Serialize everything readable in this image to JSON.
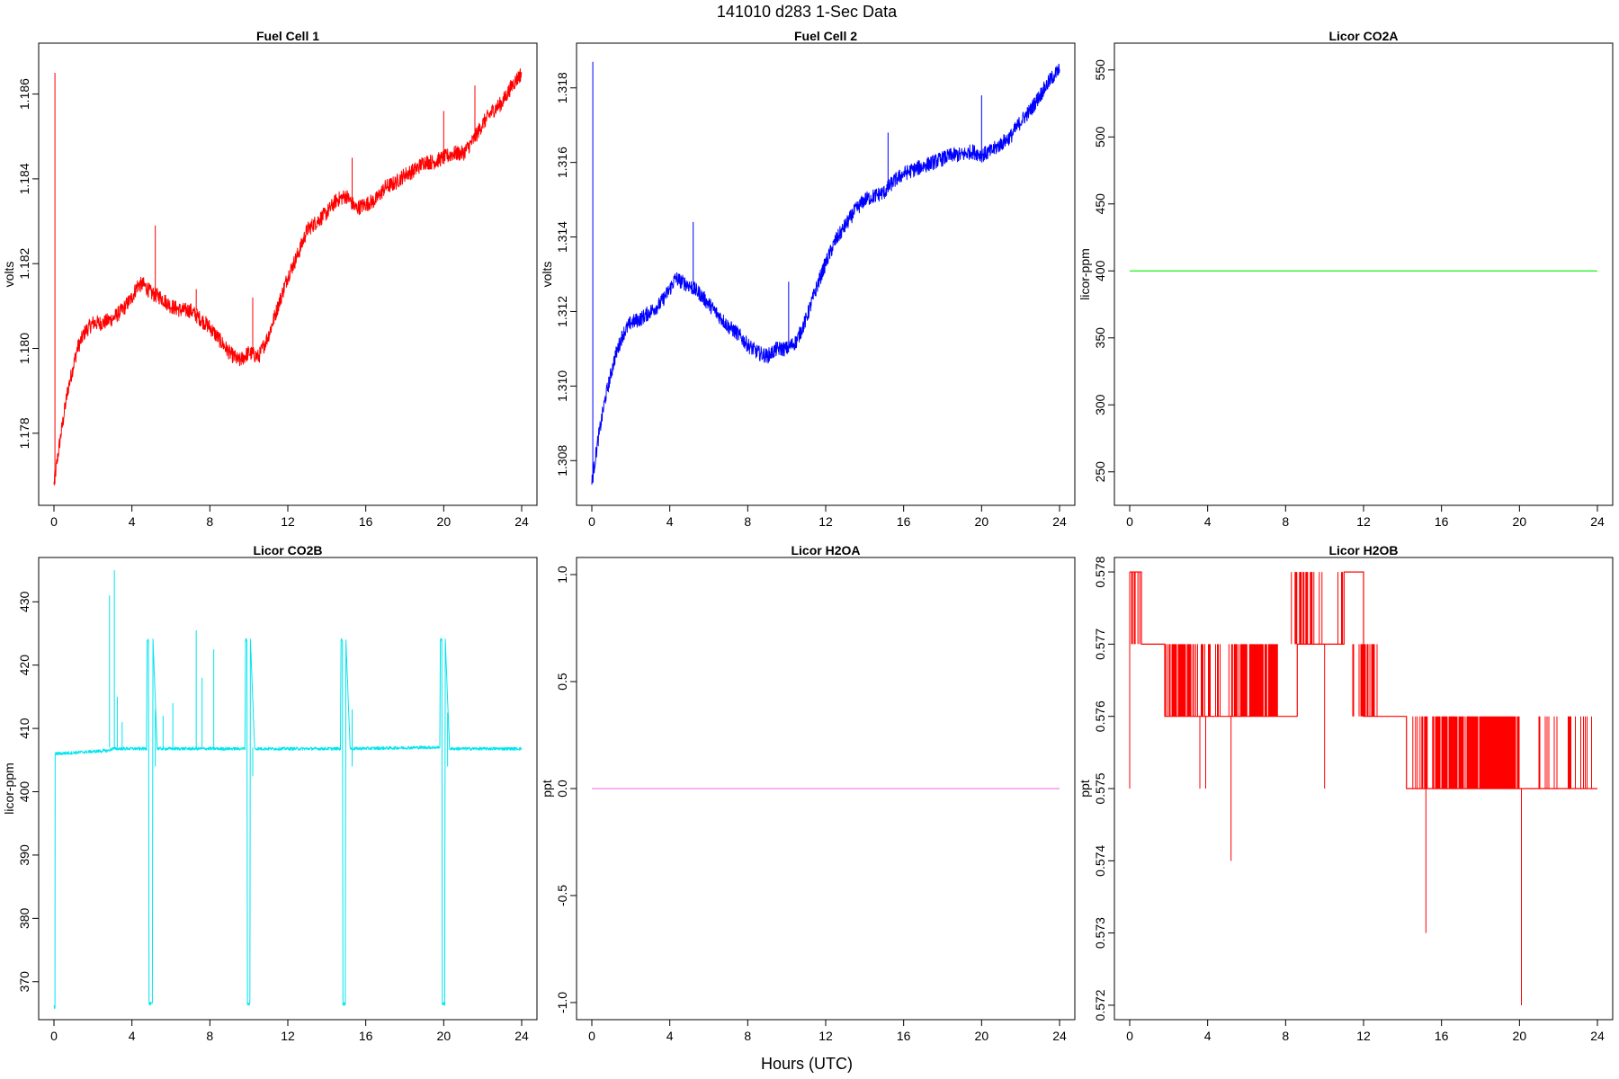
{
  "figure": {
    "title": "141010   d283   1-Sec Data",
    "xlabel": "Hours (UTC)"
  },
  "chart_data": [
    {
      "type": "line",
      "title": "Fuel Cell 1",
      "ylabel": "volts",
      "color": "#ff0000",
      "xlim": [
        0,
        24
      ],
      "ylim": [
        1.1763,
        1.1872
      ],
      "xticks": [
        0,
        4,
        8,
        12,
        16,
        20,
        24
      ],
      "xtick_labels": [
        "0",
        "4",
        "8",
        "12",
        "16",
        "20",
        "24"
      ],
      "yticks": [
        1.178,
        1.18,
        1.182,
        1.184,
        1.186
      ],
      "ytick_labels": [
        "1.178",
        "1.180",
        "1.182",
        "1.184",
        "1.186"
      ],
      "noise": 0.00018,
      "series": [
        {
          "x": [
            0,
            0.3,
            0.7,
            1.2,
            1.6,
            2,
            2.5,
            3,
            3.5,
            4,
            4.3,
            4.6,
            5,
            5.5,
            6,
            6.5,
            7,
            7.5,
            8,
            8.5,
            9,
            9.5,
            10,
            10.5,
            11,
            11.5,
            12,
            12.5,
            13,
            13.5,
            14,
            14.5,
            15,
            15.5,
            16,
            16.5,
            17,
            17.5,
            18,
            18.5,
            19,
            19.5,
            20,
            20.5,
            21,
            21.5,
            22,
            22.5,
            23,
            23.5,
            24
          ],
          "y": [
            1.1768,
            1.1778,
            1.179,
            1.18,
            1.1804,
            1.1806,
            1.1806,
            1.1807,
            1.1809,
            1.1812,
            1.1815,
            1.1815,
            1.1813,
            1.1812,
            1.181,
            1.1809,
            1.1809,
            1.1807,
            1.1805,
            1.1802,
            1.1799,
            1.1797,
            1.1799,
            1.1798,
            1.1803,
            1.181,
            1.1817,
            1.1822,
            1.1828,
            1.183,
            1.1832,
            1.1835,
            1.1836,
            1.1833,
            1.1834,
            1.1835,
            1.1838,
            1.1839,
            1.1841,
            1.1842,
            1.1844,
            1.1844,
            1.1845,
            1.1846,
            1.1846,
            1.1849,
            1.1853,
            1.1856,
            1.1858,
            1.1862,
            1.1865
          ]
        }
      ],
      "spikes": [
        {
          "x": 0.05,
          "y0": 1.1768,
          "y1": 1.1865
        },
        {
          "x": 5.2,
          "y0": 1.1812,
          "y1": 1.1829
        },
        {
          "x": 7.3,
          "y0": 1.1809,
          "y1": 1.1814
        },
        {
          "x": 10.2,
          "y0": 1.1799,
          "y1": 1.1812
        },
        {
          "x": 15.3,
          "y0": 1.1834,
          "y1": 1.1845
        },
        {
          "x": 20.0,
          "y0": 1.1845,
          "y1": 1.1856
        },
        {
          "x": 21.6,
          "y0": 1.1849,
          "y1": 1.1862
        }
      ]
    },
    {
      "type": "line",
      "title": "Fuel Cell 2",
      "ylabel": "volts",
      "color": "#0000ff",
      "xlim": [
        0,
        24
      ],
      "ylim": [
        1.3068,
        1.3192
      ],
      "xticks": [
        0,
        4,
        8,
        12,
        16,
        20,
        24
      ],
      "xtick_labels": [
        "0",
        "4",
        "8",
        "12",
        "16",
        "20",
        "24"
      ],
      "yticks": [
        1.308,
        1.31,
        1.312,
        1.314,
        1.316,
        1.318
      ],
      "ytick_labels": [
        "1.308",
        "1.310",
        "1.312",
        "1.314",
        "1.316",
        "1.318"
      ],
      "noise": 0.0002,
      "series": [
        {
          "x": [
            0,
            0.3,
            0.7,
            1.2,
            1.6,
            2,
            2.5,
            3,
            3.5,
            4,
            4.3,
            4.6,
            5,
            5.5,
            6,
            6.5,
            7,
            7.5,
            8,
            8.5,
            9,
            9.5,
            10,
            10.5,
            11,
            11.5,
            12,
            12.5,
            13,
            13.5,
            14,
            14.5,
            15,
            15.5,
            16,
            16.5,
            17,
            17.5,
            18,
            18.5,
            19,
            19.5,
            20,
            20.5,
            21,
            21.5,
            22,
            22.5,
            23,
            23.5,
            24
          ],
          "y": [
            1.3074,
            1.3085,
            1.3097,
            1.3108,
            1.3114,
            1.3117,
            1.3118,
            1.312,
            1.3122,
            1.3126,
            1.3129,
            1.3128,
            1.3127,
            1.3125,
            1.3122,
            1.3119,
            1.3116,
            1.3114,
            1.3111,
            1.3109,
            1.3108,
            1.311,
            1.311,
            1.3112,
            1.3118,
            1.3126,
            1.3133,
            1.3139,
            1.3143,
            1.3147,
            1.315,
            1.3151,
            1.3152,
            1.3155,
            1.3157,
            1.3158,
            1.3159,
            1.316,
            1.3161,
            1.3162,
            1.3162,
            1.3163,
            1.3162,
            1.3163,
            1.3165,
            1.3167,
            1.3171,
            1.3174,
            1.3178,
            1.3182,
            1.3185
          ]
        }
      ],
      "spikes": [
        {
          "x": 0.05,
          "y0": 1.3074,
          "y1": 1.3187
        },
        {
          "x": 5.2,
          "y0": 1.3127,
          "y1": 1.3144
        },
        {
          "x": 10.1,
          "y0": 1.311,
          "y1": 1.3128
        },
        {
          "x": 15.2,
          "y0": 1.3152,
          "y1": 1.3168
        },
        {
          "x": 20.0,
          "y0": 1.3162,
          "y1": 1.3178
        }
      ]
    },
    {
      "type": "line",
      "title": "Licor CO2A",
      "ylabel": "licor-ppm",
      "color": "#00ee00",
      "xlim": [
        0,
        24
      ],
      "ylim": [
        225,
        570
      ],
      "xticks": [
        0,
        4,
        8,
        12,
        16,
        20,
        24
      ],
      "xtick_labels": [
        "0",
        "4",
        "8",
        "12",
        "16",
        "20",
        "24"
      ],
      "yticks": [
        250,
        300,
        350,
        400,
        450,
        500,
        550
      ],
      "ytick_labels": [
        "250",
        "300",
        "350",
        "400",
        "450",
        "500",
        "550"
      ],
      "noise": 0,
      "series": [
        {
          "x": [
            0,
            24
          ],
          "y": [
            400,
            400
          ]
        }
      ],
      "spikes": []
    },
    {
      "type": "line",
      "title": "Licor CO2B",
      "ylabel": "licor-ppm",
      "color": "#00e5ee",
      "xlim": [
        0,
        24
      ],
      "ylim": [
        364,
        437
      ],
      "xticks": [
        0,
        4,
        8,
        12,
        16,
        20,
        24
      ],
      "xtick_labels": [
        "0",
        "4",
        "8",
        "12",
        "16",
        "20",
        "24"
      ],
      "yticks": [
        370,
        380,
        390,
        400,
        410,
        420,
        430
      ],
      "ytick_labels": [
        "370",
        "380",
        "390",
        "400",
        "410",
        "420",
        "430"
      ],
      "noise": 0.25,
      "series": [
        {
          "x": [
            0,
            0.05,
            0.06,
            0.1,
            2.8,
            3.0,
            4.5,
            4.75,
            4.78,
            4.85,
            4.88,
            5.05,
            5.08,
            5.3,
            7,
            9.5,
            9.8,
            9.83,
            9.9,
            9.93,
            10.05,
            10.08,
            10.3,
            14,
            14.7,
            14.73,
            14.8,
            14.83,
            14.95,
            14.98,
            15.2,
            19,
            19.8,
            19.83,
            19.9,
            19.93,
            20.05,
            20.08,
            20.3,
            24
          ],
          "y": [
            366,
            366,
            406,
            406,
            406.5,
            406.8,
            406.8,
            406.8,
            424,
            424,
            366.5,
            366.5,
            424,
            406.8,
            406.8,
            406.8,
            406.8,
            424,
            424,
            366.5,
            366.5,
            424,
            406.8,
            406.8,
            406.8,
            424,
            424,
            366.5,
            366.5,
            424,
            406.8,
            407,
            407,
            424,
            424,
            366.5,
            366.5,
            424,
            406.8,
            406.8
          ]
        }
      ],
      "spikes": [
        {
          "x": 2.85,
          "y0": 407,
          "y1": 431
        },
        {
          "x": 3.1,
          "y0": 407,
          "y1": 435
        },
        {
          "x": 3.25,
          "y0": 407,
          "y1": 415
        },
        {
          "x": 3.5,
          "y0": 407,
          "y1": 411
        },
        {
          "x": 5.2,
          "y0": 404,
          "y1": 413
        },
        {
          "x": 5.6,
          "y0": 407,
          "y1": 412
        },
        {
          "x": 6.1,
          "y0": 407,
          "y1": 414
        },
        {
          "x": 7.3,
          "y0": 407,
          "y1": 425.5
        },
        {
          "x": 7.6,
          "y0": 407,
          "y1": 418
        },
        {
          "x": 8.2,
          "y0": 407,
          "y1": 422.5
        },
        {
          "x": 10.2,
          "y0": 402.5,
          "y1": 407
        },
        {
          "x": 15.3,
          "y0": 404,
          "y1": 413
        },
        {
          "x": 20.2,
          "y0": 404,
          "y1": 412.5
        }
      ]
    },
    {
      "type": "line",
      "title": "Licor H2OA",
      "ylabel": "ppt",
      "color": "#ee82ee",
      "xlim": [
        0,
        24
      ],
      "ylim": [
        -1.08,
        1.08
      ],
      "xticks": [
        0,
        4,
        8,
        12,
        16,
        20,
        24
      ],
      "xtick_labels": [
        "0",
        "4",
        "8",
        "12",
        "16",
        "20",
        "24"
      ],
      "yticks": [
        -1.0,
        -0.5,
        0.0,
        0.5,
        1.0
      ],
      "ytick_labels": [
        "-1.0",
        "-0.5",
        "0.0",
        "0.5",
        "1.0"
      ],
      "noise": 0,
      "series": [
        {
          "x": [
            0,
            24
          ],
          "y": [
            0,
            0
          ]
        }
      ],
      "spikes": []
    },
    {
      "type": "line",
      "title": "Licor H2OB",
      "ylabel": "ppt",
      "color": "#ff0000",
      "xlim": [
        0,
        24
      ],
      "ylim": [
        0.5718,
        0.5782
      ],
      "xticks": [
        0,
        4,
        8,
        12,
        16,
        20,
        24
      ],
      "xtick_labels": [
        "0",
        "4",
        "8",
        "12",
        "16",
        "20",
        "24"
      ],
      "yticks": [
        0.572,
        0.573,
        0.574,
        0.575,
        0.576,
        0.577,
        0.578
      ],
      "ytick_labels": [
        "0.572",
        "0.573",
        "0.574",
        "0.575",
        "0.576",
        "0.577",
        "0.578"
      ],
      "noise": 0,
      "series": [
        {
          "x": [
            0,
            0.6,
            0.6,
            1.8,
            1.8,
            8.6,
            8.6,
            11,
            11,
            12,
            12,
            14.2,
            14.2,
            24
          ],
          "y": [
            0.578,
            0.578,
            0.577,
            0.577,
            0.576,
            0.576,
            0.577,
            0.577,
            0.578,
            0.578,
            0.576,
            0.576,
            0.575,
            0.575
          ]
        }
      ],
      "bands": [
        {
          "x0": 0.05,
          "x1": 0.55,
          "lo": 0.577,
          "hi": 0.578,
          "density": 0.55
        },
        {
          "x0": 1.8,
          "x1": 3.3,
          "lo": 0.576,
          "hi": 0.577,
          "density": 0.8
        },
        {
          "x0": 3.3,
          "x1": 5.0,
          "lo": 0.576,
          "hi": 0.577,
          "density": 0.35
        },
        {
          "x0": 5.0,
          "x1": 7.6,
          "lo": 0.576,
          "hi": 0.577,
          "density": 0.75
        },
        {
          "x0": 8.3,
          "x1": 9.9,
          "lo": 0.577,
          "hi": 0.578,
          "density": 0.55
        },
        {
          "x0": 10.5,
          "x1": 11.0,
          "lo": 0.577,
          "hi": 0.578,
          "density": 0.4
        },
        {
          "x0": 11.4,
          "x1": 12.8,
          "lo": 0.576,
          "hi": 0.577,
          "density": 0.7
        },
        {
          "x0": 14.3,
          "x1": 15.6,
          "lo": 0.575,
          "hi": 0.576,
          "density": 0.5
        },
        {
          "x0": 15.6,
          "x1": 17.4,
          "lo": 0.575,
          "hi": 0.576,
          "density": 0.8
        },
        {
          "x0": 17.4,
          "x1": 20.0,
          "lo": 0.575,
          "hi": 0.576,
          "density": 0.97
        },
        {
          "x0": 21.0,
          "x1": 22.0,
          "lo": 0.575,
          "hi": 0.576,
          "density": 0.25
        },
        {
          "x0": 22.5,
          "x1": 23.8,
          "lo": 0.575,
          "hi": 0.576,
          "density": 0.3
        }
      ],
      "spikes": [
        {
          "x": 0.0,
          "y0": 0.575,
          "y1": 0.578
        },
        {
          "x": 3.6,
          "y0": 0.575,
          "y1": 0.576
        },
        {
          "x": 3.9,
          "y0": 0.575,
          "y1": 0.576
        },
        {
          "x": 5.2,
          "y0": 0.574,
          "y1": 0.576
        },
        {
          "x": 10.0,
          "y0": 0.575,
          "y1": 0.577
        },
        {
          "x": 15.2,
          "y0": 0.573,
          "y1": 0.575
        },
        {
          "x": 20.1,
          "y0": 0.572,
          "y1": 0.575
        }
      ]
    }
  ]
}
